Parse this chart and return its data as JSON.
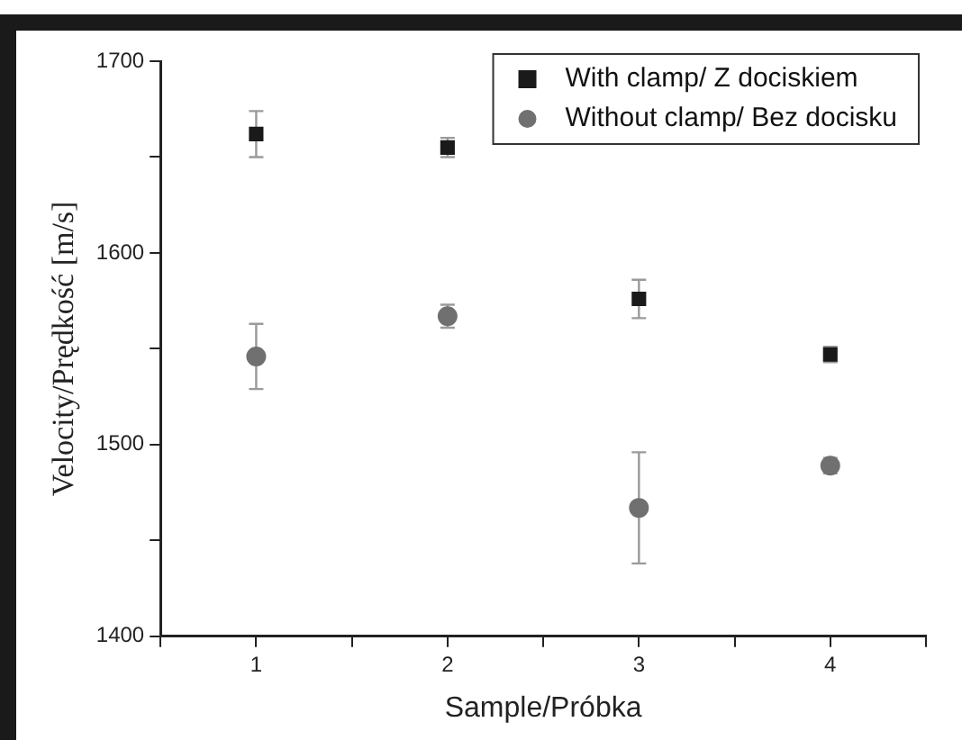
{
  "chart_data": {
    "type": "scatter",
    "xlabel": "Sample/Próbka",
    "ylabel": "Velocity/Prędkość [m/s]",
    "x": [
      1,
      2,
      3,
      4
    ],
    "series": [
      {
        "name": "With clamp/ Z dociskiem",
        "color": "#1a1a1a",
        "marker": "square",
        "values": [
          1662,
          1655,
          1576,
          1547
        ],
        "errors": [
          12,
          5,
          10,
          4
        ]
      },
      {
        "name": "Without clamp/ Bez docisku",
        "color": "#707070",
        "marker": "circle",
        "values": [
          1546,
          1567,
          1467,
          1489
        ],
        "errors": [
          17,
          6,
          29,
          4
        ]
      }
    ],
    "xlim": [
      0.5,
      4.5
    ],
    "xticks": [
      {
        "value": 0.5,
        "label": null
      },
      1,
      {
        "value": 1.5,
        "label": null
      },
      2,
      {
        "value": 2.5,
        "label": null
      },
      3,
      {
        "value": 3.5,
        "label": null
      },
      4,
      {
        "value": 4.5,
        "label": null
      }
    ],
    "ylim": [
      1400,
      1700
    ],
    "yticks": [
      1400,
      {
        "value": 1450,
        "label": null
      },
      1500,
      {
        "value": 1550,
        "label": null
      },
      1600,
      {
        "value": 1650,
        "label": null
      },
      1700
    ],
    "grid": false,
    "legend": "top right"
  }
}
